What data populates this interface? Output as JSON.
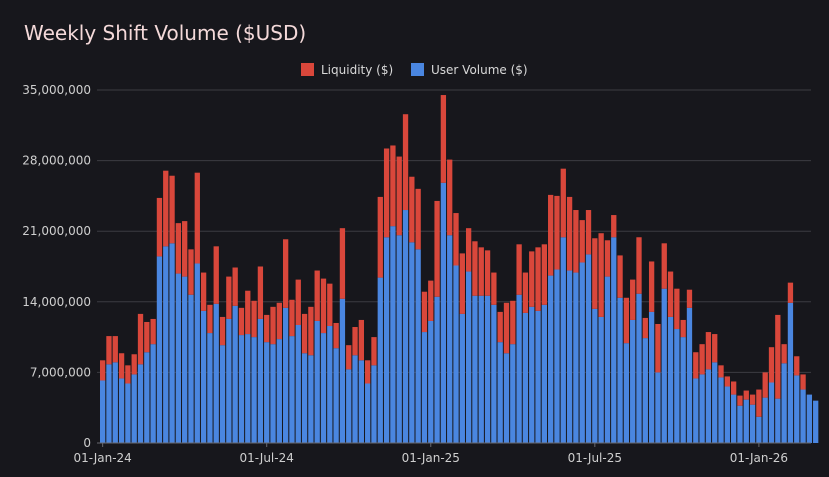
{
  "chart_data": {
    "type": "bar",
    "stacked": true,
    "title": "Weekly Shift Volume ($USD)",
    "xlabel": "",
    "ylabel": "",
    "ylim": [
      0,
      35000000
    ],
    "y_ticks": [
      0,
      7000000,
      14000000,
      21000000,
      28000000,
      35000000
    ],
    "y_tick_labels": [
      "0",
      "7,000,000",
      "14,000,000",
      "21,000,000",
      "28,000,000",
      "35,000,000"
    ],
    "x_tick_labels": [
      "01-Jan-24",
      "01-Jul-24",
      "01-Jan-25",
      "01-Jul-25",
      "01-Jan-26"
    ],
    "x_tick_week_index": [
      0,
      26,
      52,
      78,
      104
    ],
    "grid": true,
    "legend_position": "top-center",
    "colors": {
      "liquidity": "#d9473b",
      "user_volume": "#4a86e0"
    },
    "series": [
      {
        "name": "Liquidity ($)",
        "values": [
          2000000,
          2800000,
          2600000,
          2500000,
          1800000,
          2000000,
          5000000,
          3000000,
          2500000,
          5800000,
          7500000,
          6700000,
          5000000,
          5500000,
          4500000,
          9000000,
          3800000,
          2800000,
          5700000,
          2800000,
          4200000,
          3800000,
          2700000,
          4300000,
          3600000,
          5200000,
          2700000,
          3700000,
          3600000,
          6800000,
          3600000,
          4500000,
          3900000,
          4800000,
          5000000,
          5400000,
          4200000,
          2500000,
          7000000,
          2400000,
          2800000,
          4000000,
          2300000,
          2800000,
          8000000,
          8800000,
          8000000,
          7800000,
          9500000,
          6500000,
          6000000,
          4000000,
          4000000,
          9500000,
          8700000,
          7500000,
          5200000,
          6000000,
          4300000,
          5400000,
          4800000,
          4500000,
          3200000,
          3000000,
          5000000,
          4300000,
          5000000,
          4000000,
          5500000,
          6300000,
          6000000,
          8000000,
          7300000,
          6800000,
          7300000,
          6200000,
          4200000,
          4400000,
          7000000,
          8300000,
          3600000,
          2200000,
          4200000,
          4500000,
          4000000,
          5600000,
          2000000,
          5000000,
          4800000,
          4500000,
          4500000,
          4000000,
          1700000,
          1800000,
          2600000,
          3000000,
          3700000,
          2800000,
          1200000,
          1000000,
          1300000,
          1000000,
          900000,
          1000000,
          2700000,
          2500000,
          3500000,
          8300000,
          1900000,
          2000000,
          1900000,
          1500000
        ],
        "bar_color": "#d9473b"
      },
      {
        "name": "User Volume ($)",
        "values": [
          6200000,
          7800000,
          8000000,
          6400000,
          5900000,
          6800000,
          7800000,
          9000000,
          9800000,
          18500000,
          19500000,
          19800000,
          16800000,
          16500000,
          14700000,
          17800000,
          13100000,
          10900000,
          13800000,
          9700000,
          12300000,
          13600000,
          10700000,
          10800000,
          10500000,
          12300000,
          10000000,
          9800000,
          10300000,
          13400000,
          10600000,
          11700000,
          8900000,
          8700000,
          12100000,
          10900000,
          11600000,
          9400000,
          14300000,
          7300000,
          8700000,
          8200000,
          5900000,
          7700000,
          16400000,
          20400000,
          21500000,
          20600000,
          23100000,
          19900000,
          19200000,
          11000000,
          12100000,
          14500000,
          25800000,
          20600000,
          17600000,
          12800000,
          17000000,
          14600000,
          14600000,
          14600000,
          13700000,
          10000000,
          8900000,
          9800000,
          14700000,
          12900000,
          13500000,
          13100000,
          13700000,
          16600000,
          17200000,
          20400000,
          17100000,
          16900000,
          17900000,
          18700000,
          13300000,
          12500000,
          16500000,
          20400000,
          14400000,
          9900000,
          12200000,
          14800000,
          10400000,
          13000000,
          7000000,
          15300000,
          12500000,
          11300000,
          10500000,
          13400000,
          6400000,
          6800000,
          7300000,
          8000000,
          6500000,
          5600000,
          4800000,
          3700000,
          4300000,
          3800000,
          2600000,
          4500000,
          6000000,
          4400000,
          7900000,
          13900000,
          6700000,
          5300000,
          4800000,
          4200000
        ],
        "bar_color": "#4a86e0"
      }
    ]
  },
  "legend": {
    "liquidity_label": "Liquidity ($)",
    "user_volume_label": "User Volume ($)"
  }
}
